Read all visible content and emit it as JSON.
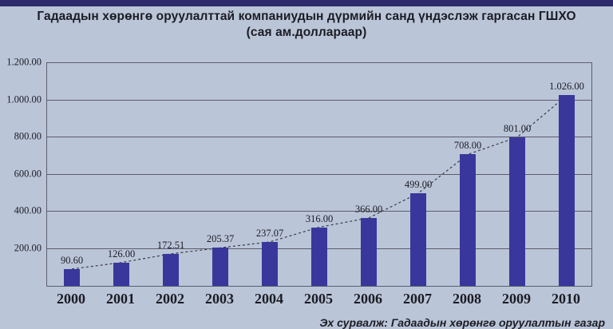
{
  "title": {
    "line1": "Гадаадын хөрөнгө оруулалттай компаниудын дүрмийн санд үндэслэж гаргасан ГШХО",
    "line2": "(сая ам.доллараар)"
  },
  "source": "Эх сурвалж: Гадаадын хөрөнгө оруулалтын газар",
  "colors": {
    "background": "#bac5d8",
    "top_border": "#2d2b6b",
    "bar": "#39379b",
    "grid": "#5c5d6b",
    "trend_line": "#3c3c46",
    "text": "#1c1c24"
  },
  "chart_data": {
    "type": "bar",
    "title": "Гадаадын хөрөнгө оруулалттай компаниудын дүрмийн санд үндэслэж гаргасан ГШХО",
    "subtitle": "(сая ам.доллараар)",
    "categories": [
      "2000",
      "2001",
      "2002",
      "2003",
      "2004",
      "2005",
      "2006",
      "2007",
      "2008",
      "2009",
      "2010"
    ],
    "values": [
      90.6,
      126.0,
      172.51,
      205.37,
      237.07,
      316.0,
      366.0,
      499.0,
      708.0,
      801.0,
      1026.0
    ],
    "value_labels": [
      "90.60",
      "126.00",
      "172.51",
      "205.37",
      "237.07",
      "316.00",
      "366.00",
      "499.00",
      "708.00",
      "801.00",
      "1.026.00"
    ],
    "xlabel": "",
    "ylabel": "",
    "ylim": [
      0,
      1200
    ],
    "y_ticks": [
      200,
      400,
      600,
      800,
      1000,
      1200
    ],
    "y_tick_labels": [
      "200.00",
      "400.00",
      "600.00",
      "800.00",
      "1.000.00",
      "1.200.00"
    ],
    "grid": true,
    "legend": false,
    "overlays": [
      {
        "type": "trend-line",
        "style": "dashed",
        "connects": "bar tops"
      }
    ]
  }
}
